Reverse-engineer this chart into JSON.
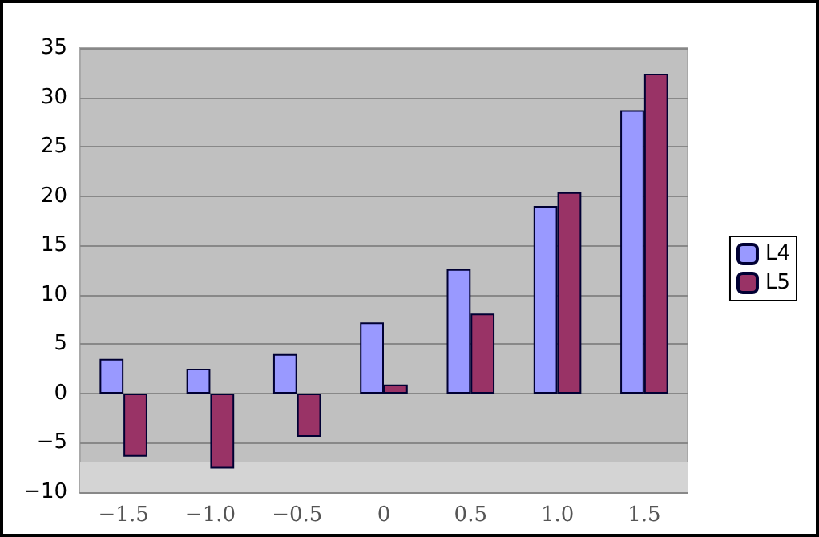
{
  "chart_data": {
    "type": "bar",
    "categories": [
      "−1.5",
      "−1.0",
      "−0.5",
      "0",
      "0.5",
      "1.0",
      "1.5"
    ],
    "series": [
      {
        "name": "L4",
        "color": "#9999ff",
        "values": [
          3.5,
          2.5,
          4.0,
          7.2,
          12.6,
          19.0,
          28.7
        ]
      },
      {
        "name": "L5",
        "color": "#993366",
        "values": [
          -6.4,
          -7.6,
          -4.4,
          0.9,
          8.1,
          20.4,
          32.4
        ]
      }
    ],
    "ylim": [
      -10,
      35
    ],
    "yticks": [
      {
        "value": -10,
        "label": "−10"
      },
      {
        "value": -5,
        "label": "−5"
      },
      0,
      5,
      10,
      15,
      20,
      25,
      30,
      35
    ],
    "bands": [
      {
        "axis": "y",
        "from": -10,
        "to": -7,
        "color": "#d4d4d4"
      }
    ],
    "grid": "y",
    "legend": "right"
  }
}
